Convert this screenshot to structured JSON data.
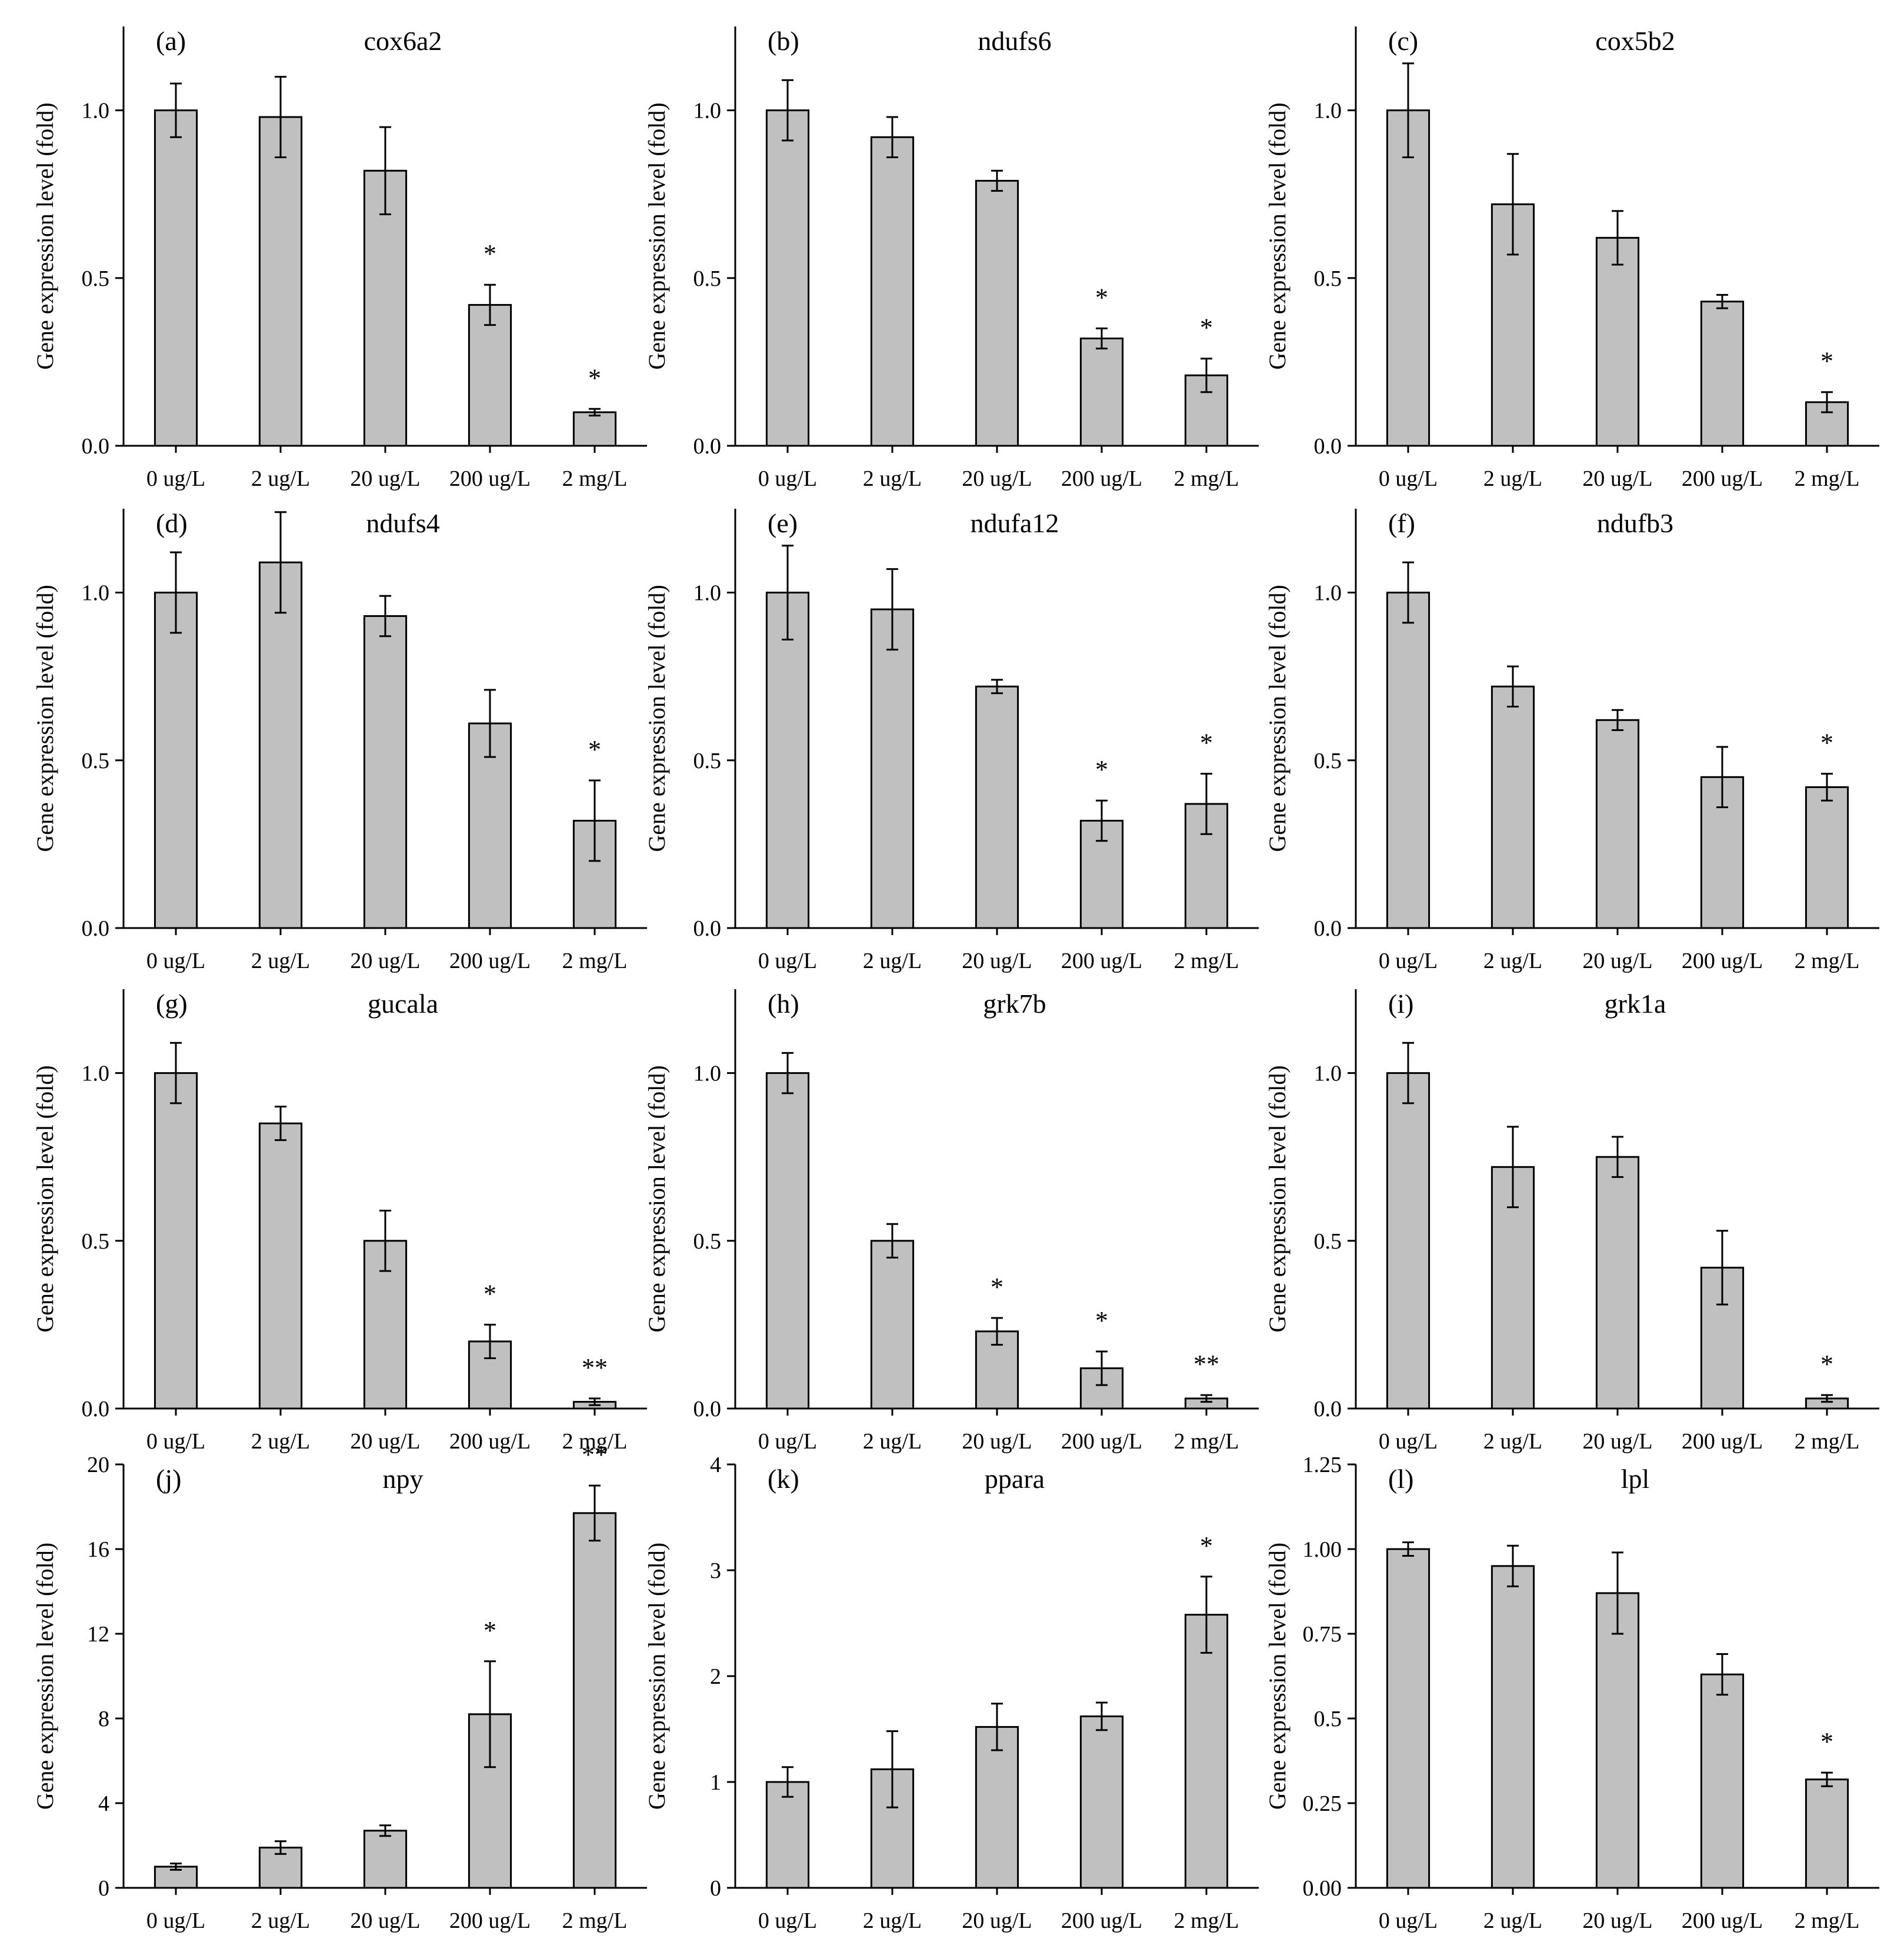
{
  "colors": {
    "bar_fill": "#c0c0c0",
    "bar_stroke": "#000000",
    "axis": "#000000",
    "background": "#ffffff"
  },
  "chart_data": [
    {
      "panel": "(a)",
      "gene": "cox6a2",
      "type": "bar",
      "ylabel": "Gene expression level (fold)",
      "categories": [
        "0 ug/L",
        "2 ug/L",
        "20 ug/L",
        "200 ug/L",
        "2 mg/L"
      ],
      "values": [
        1.0,
        0.98,
        0.82,
        0.42,
        0.1
      ],
      "errors": [
        0.08,
        0.12,
        0.13,
        0.06,
        0.01
      ],
      "marks": [
        "",
        "",
        "",
        "*",
        "*"
      ],
      "ylim": [
        0,
        1.25
      ],
      "yticks": [
        {
          "v": 0,
          "label": "0.0"
        },
        {
          "v": 0.5,
          "label": "0.5"
        },
        {
          "v": 1,
          "label": "1.0"
        }
      ]
    },
    {
      "panel": "(b)",
      "gene": "ndufs6",
      "type": "bar",
      "ylabel": "Gene expression level (fold)",
      "categories": [
        "0 ug/L",
        "2 ug/L",
        "20 ug/L",
        "200 ug/L",
        "2 mg/L"
      ],
      "values": [
        1.0,
        0.92,
        0.79,
        0.32,
        0.21
      ],
      "errors": [
        0.09,
        0.06,
        0.03,
        0.03,
        0.05
      ],
      "marks": [
        "",
        "",
        "",
        "*",
        "*"
      ],
      "ylim": [
        0,
        1.25
      ],
      "yticks": [
        {
          "v": 0,
          "label": "0.0"
        },
        {
          "v": 0.5,
          "label": "0.5"
        },
        {
          "v": 1,
          "label": "1.0"
        }
      ]
    },
    {
      "panel": "(c)",
      "gene": "cox5b2",
      "type": "bar",
      "ylabel": "Gene expression level (fold)",
      "categories": [
        "0 ug/L",
        "2 ug/L",
        "20 ug/L",
        "200 ug/L",
        "2 mg/L"
      ],
      "values": [
        1.0,
        0.72,
        0.62,
        0.43,
        0.13
      ],
      "errors": [
        0.14,
        0.15,
        0.08,
        0.02,
        0.03
      ],
      "marks": [
        "",
        "",
        "",
        "",
        "*"
      ],
      "ylim": [
        0,
        1.25
      ],
      "yticks": [
        {
          "v": 0,
          "label": "0.0"
        },
        {
          "v": 0.5,
          "label": "0.5"
        },
        {
          "v": 1,
          "label": "1.0"
        }
      ]
    },
    {
      "panel": "(d)",
      "gene": "ndufs4",
      "type": "bar",
      "ylabel": "Gene expression level (fold)",
      "categories": [
        "0 ug/L",
        "2 ug/L",
        "20 ug/L",
        "200 ug/L",
        "2 mg/L"
      ],
      "values": [
        1.0,
        1.09,
        0.93,
        0.61,
        0.32
      ],
      "errors": [
        0.12,
        0.15,
        0.06,
        0.1,
        0.12
      ],
      "marks": [
        "",
        "",
        "",
        "",
        "*"
      ],
      "ylim": [
        0,
        1.25
      ],
      "yticks": [
        {
          "v": 0,
          "label": "0.0"
        },
        {
          "v": 0.5,
          "label": "0.5"
        },
        {
          "v": 1,
          "label": "1.0"
        }
      ]
    },
    {
      "panel": "(e)",
      "gene": "ndufa12",
      "type": "bar",
      "ylabel": "Gene expression level (fold)",
      "categories": [
        "0 ug/L",
        "2 ug/L",
        "20 ug/L",
        "200 ug/L",
        "2 mg/L"
      ],
      "values": [
        1.0,
        0.95,
        0.72,
        0.32,
        0.37
      ],
      "errors": [
        0.14,
        0.12,
        0.02,
        0.06,
        0.09
      ],
      "marks": [
        "",
        "",
        "",
        "*",
        "*"
      ],
      "ylim": [
        0,
        1.25
      ],
      "yticks": [
        {
          "v": 0,
          "label": "0.0"
        },
        {
          "v": 0.5,
          "label": "0.5"
        },
        {
          "v": 1,
          "label": "1.0"
        }
      ]
    },
    {
      "panel": "(f)",
      "gene": "ndufb3",
      "type": "bar",
      "ylabel": "Gene expression level (fold)",
      "categories": [
        "0 ug/L",
        "2 ug/L",
        "20 ug/L",
        "200 ug/L",
        "2 mg/L"
      ],
      "values": [
        1.0,
        0.72,
        0.62,
        0.45,
        0.42
      ],
      "errors": [
        0.09,
        0.06,
        0.03,
        0.09,
        0.04
      ],
      "marks": [
        "",
        "",
        "",
        "",
        "*"
      ],
      "ylim": [
        0,
        1.25
      ],
      "yticks": [
        {
          "v": 0,
          "label": "0.0"
        },
        {
          "v": 0.5,
          "label": "0.5"
        },
        {
          "v": 1,
          "label": "1.0"
        }
      ]
    },
    {
      "panel": "(g)",
      "gene": "gucala",
      "type": "bar",
      "ylabel": "Gene expression level (fold)",
      "categories": [
        "0 ug/L",
        "2 ug/L",
        "20 ug/L",
        "200 ug/L",
        "2 mg/L"
      ],
      "values": [
        1.0,
        0.85,
        0.5,
        0.2,
        0.02
      ],
      "errors": [
        0.09,
        0.05,
        0.09,
        0.05,
        0.01
      ],
      "marks": [
        "",
        "",
        "",
        "*",
        "**"
      ],
      "ylim": [
        0,
        1.25
      ],
      "yticks": [
        {
          "v": 0,
          "label": "0.0"
        },
        {
          "v": 0.5,
          "label": "0.5"
        },
        {
          "v": 1,
          "label": "1.0"
        }
      ]
    },
    {
      "panel": "(h)",
      "gene": "grk7b",
      "type": "bar",
      "ylabel": "Gene expression level (fold)",
      "categories": [
        "0 ug/L",
        "2 ug/L",
        "20 ug/L",
        "200 ug/L",
        "2 mg/L"
      ],
      "values": [
        1.0,
        0.5,
        0.23,
        0.12,
        0.03
      ],
      "errors": [
        0.06,
        0.05,
        0.04,
        0.05,
        0.01
      ],
      "marks": [
        "",
        "",
        "*",
        "*",
        "**"
      ],
      "ylim": [
        0,
        1.25
      ],
      "yticks": [
        {
          "v": 0,
          "label": "0.0"
        },
        {
          "v": 0.5,
          "label": "0.5"
        },
        {
          "v": 1,
          "label": "1.0"
        }
      ]
    },
    {
      "panel": "(i)",
      "gene": "grk1a",
      "type": "bar",
      "ylabel": "Gene expression level (fold)",
      "categories": [
        "0 ug/L",
        "2 ug/L",
        "20 ug/L",
        "200 ug/L",
        "2 mg/L"
      ],
      "values": [
        1.0,
        0.72,
        0.75,
        0.42,
        0.03
      ],
      "errors": [
        0.09,
        0.12,
        0.06,
        0.11,
        0.01
      ],
      "marks": [
        "",
        "",
        "",
        "",
        "*"
      ],
      "ylim": [
        0,
        1.25
      ],
      "yticks": [
        {
          "v": 0,
          "label": "0.0"
        },
        {
          "v": 0.5,
          "label": "0.5"
        },
        {
          "v": 1,
          "label": "1.0"
        }
      ]
    },
    {
      "panel": "(j)",
      "gene": "npy",
      "type": "bar",
      "ylabel": "Gene expression level (fold)",
      "categories": [
        "0 ug/L",
        "2 ug/L",
        "20 ug/L",
        "200 ug/L",
        "2 mg/L"
      ],
      "values": [
        1.0,
        1.9,
        2.7,
        8.2,
        17.7
      ],
      "errors": [
        0.15,
        0.3,
        0.25,
        2.5,
        1.3
      ],
      "marks": [
        "",
        "",
        "",
        "*",
        "**"
      ],
      "ylim": [
        0,
        20
      ],
      "yticks": [
        {
          "v": 0,
          "label": "0"
        },
        {
          "v": 4,
          "label": "4"
        },
        {
          "v": 8,
          "label": "8"
        },
        {
          "v": 12,
          "label": "12"
        },
        {
          "v": 16,
          "label": "16"
        },
        {
          "v": 20,
          "label": "20"
        }
      ]
    },
    {
      "panel": "(k)",
      "gene": "ppara",
      "type": "bar",
      "ylabel": "Gene expression level (fold)",
      "categories": [
        "0 ug/L",
        "2 ug/L",
        "20 ug/L",
        "200 ug/L",
        "2 mg/L"
      ],
      "values": [
        1.0,
        1.12,
        1.52,
        1.62,
        2.58
      ],
      "errors": [
        0.14,
        0.36,
        0.22,
        0.13,
        0.36
      ],
      "marks": [
        "",
        "",
        "",
        "",
        "*"
      ],
      "ylim": [
        0,
        4
      ],
      "yticks": [
        {
          "v": 0,
          "label": "0"
        },
        {
          "v": 1,
          "label": "1"
        },
        {
          "v": 2,
          "label": "2"
        },
        {
          "v": 3,
          "label": "3"
        },
        {
          "v": 4,
          "label": "4"
        }
      ]
    },
    {
      "panel": "(l)",
      "gene": "lpl",
      "type": "bar",
      "ylabel": "Gene expression level (fold)",
      "categories": [
        "0 ug/L",
        "2 ug/L",
        "20 ug/L",
        "200 ug/L",
        "2 mg/L"
      ],
      "values": [
        1.0,
        0.95,
        0.87,
        0.63,
        0.32
      ],
      "errors": [
        0.02,
        0.06,
        0.12,
        0.06,
        0.02
      ],
      "marks": [
        "",
        "",
        "",
        "",
        "*"
      ],
      "ylim": [
        0,
        1.25
      ],
      "yticks": [
        {
          "v": 0,
          "label": "0.00"
        },
        {
          "v": 0.25,
          "label": "0.25"
        },
        {
          "v": 0.5,
          "label": "0.5"
        },
        {
          "v": 0.75,
          "label": "0.75"
        },
        {
          "v": 1,
          "label": "1.00"
        },
        {
          "v": 1.25,
          "label": "1.25"
        }
      ]
    }
  ]
}
